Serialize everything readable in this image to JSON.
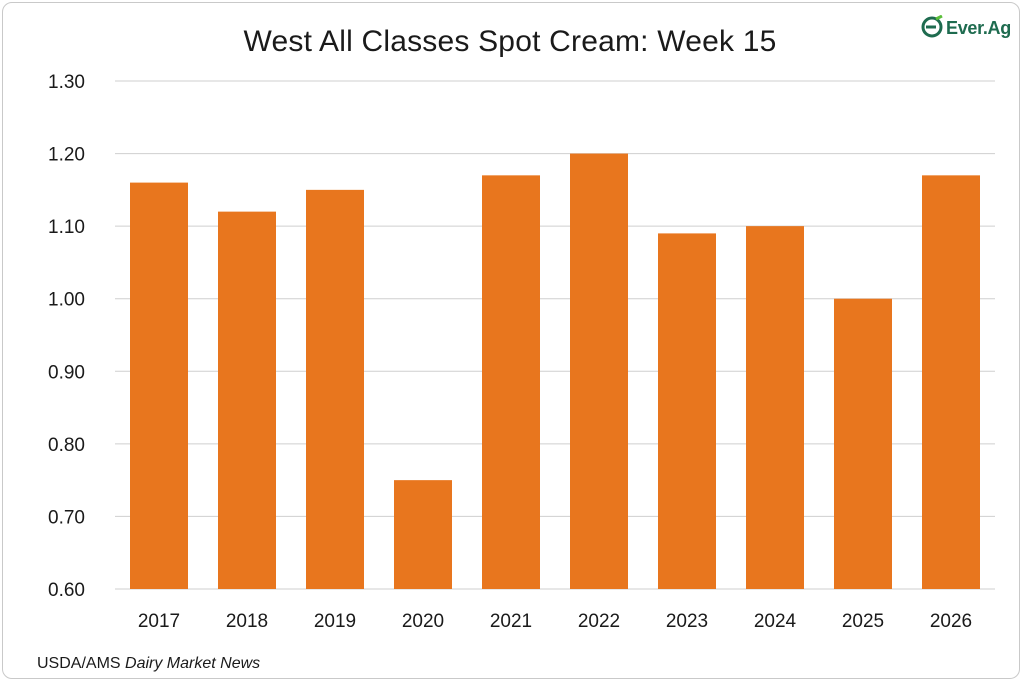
{
  "chart_data": {
    "type": "bar",
    "title": "West All Classes Spot Cream: Week 15",
    "categories": [
      "2017",
      "2018",
      "2019",
      "2020",
      "2021",
      "2022",
      "2023",
      "2024",
      "2025",
      "2026"
    ],
    "values": [
      1.16,
      1.12,
      1.15,
      0.75,
      1.17,
      1.2,
      1.09,
      1.1,
      1.0,
      1.17
    ],
    "ylim": [
      0.6,
      1.3
    ],
    "yticks": [
      "0.60",
      "0.70",
      "0.80",
      "0.90",
      "1.00",
      "1.10",
      "1.20",
      "1.30"
    ],
    "xlabel": "",
    "ylabel": "",
    "grid": true,
    "bar_color": "#E8761E",
    "grid_color": "#cfcfcf"
  },
  "brand": {
    "logo_text": "Ever.Ag",
    "logo_icon": "ever-ag-logo-icon",
    "color": "#1e6b4f"
  },
  "source": {
    "prefix": "USDA/AMS ",
    "italic": "Dairy Market News"
  }
}
